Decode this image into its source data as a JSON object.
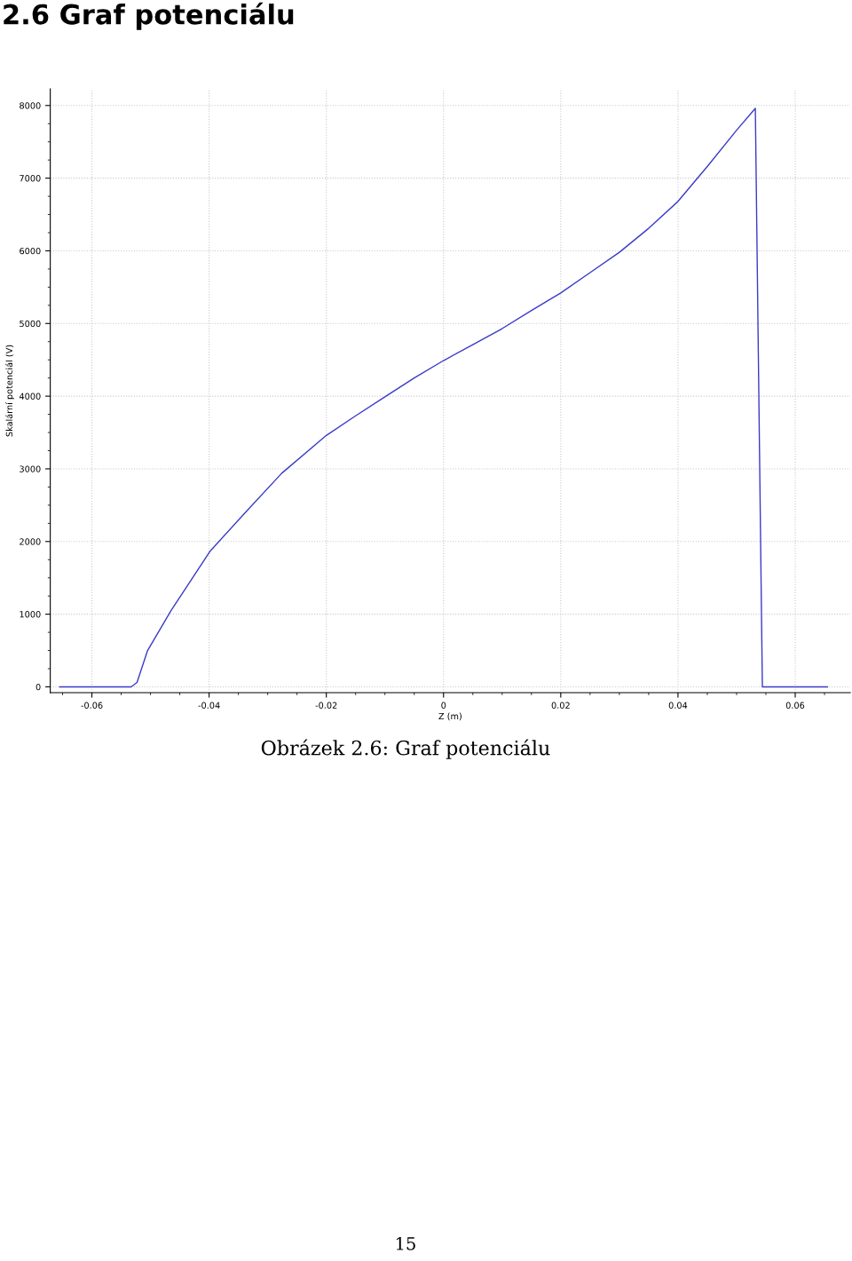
{
  "chart_data": {
    "type": "line",
    "title": "2.6 Graf potenciálu",
    "xlabel": "Z (m)",
    "ylabel": "Skalární potenciál (V)",
    "annotations": [
      "Obrázek 2.6: Graf potenciálu",
      "15"
    ],
    "x": [
      -0.0655,
      -0.0533,
      -0.0523,
      -0.0505,
      -0.0465,
      -0.0398,
      -0.0338,
      -0.0276,
      -0.02,
      -0.015,
      -0.01,
      -0.005,
      0,
      0.005,
      0.01,
      0.015,
      0.02,
      0.025,
      0.03,
      0.035,
      0.04,
      0.045,
      0.05,
      0.0532,
      0.0544,
      0.0655
    ],
    "series": [
      {
        "color": "#3a3ac8",
        "values": [
          0,
          0,
          60,
          500,
          1050,
          1870,
          2400,
          2940,
          3460,
          3730,
          3990,
          4250,
          4490,
          4710,
          4930,
          5180,
          5420,
          5700,
          5980,
          6310,
          6680,
          7160,
          7660,
          7960,
          0,
          0
        ]
      }
    ],
    "xlim": [
      -0.0671,
      0.0694
    ],
    "xticks": [
      {
        "value": -0.06,
        "label": "-0.06"
      },
      {
        "value": -0.04,
        "label": "-0.04"
      },
      {
        "value": -0.02,
        "label": "-0.02"
      },
      0,
      0.02,
      0.04,
      0.06
    ],
    "ylim": [
      -80,
      8230
    ],
    "yticks": [
      0,
      1000,
      2000,
      3000,
      4000,
      5000,
      6000,
      7000,
      8000
    ],
    "grid": true,
    "marker": "none",
    "line_style": "solid"
  }
}
